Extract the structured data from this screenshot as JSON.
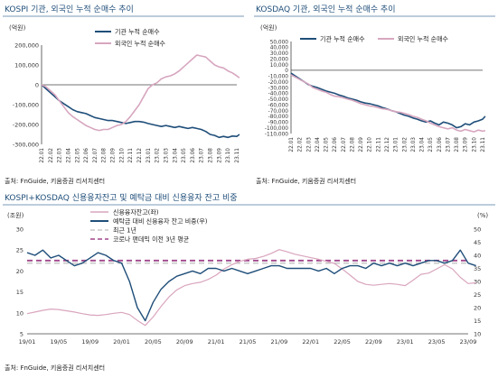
{
  "colors": {
    "title": "#1f4e79",
    "institution": "#1f4e79",
    "foreign": "#d7a6bf",
    "rule": "#7a9bb8",
    "credit_balance": "#d9a5bd",
    "credit_ratio": "#1f4e79",
    "recent_1y": "#c8c8c8",
    "pre_covid_avg": "#a0468c"
  },
  "charts": {
    "kospi": {
      "title": "KOSPI 기관, 외국인 누적 순매수 추이",
      "unit": "(억원)",
      "source": "출처: FnGuide, 키움증권 리서치센터"
    },
    "kosdaq": {
      "title": "KOSDAQ 기관, 외국인 누적 순매수 추이",
      "unit": "(억원)",
      "source": "출처: FnGuide, 키움증권 리서치센터"
    },
    "credit": {
      "title": "KOSPI+KOSDAQ 신용융자잔고 및 예탁금 대비 신용융자 잔고 비중",
      "unit_left": "(조원)",
      "unit_right": "(%)",
      "source": "출처: FnGuide, 키움증권 리서치센터"
    }
  },
  "chart_data": [
    {
      "id": "kospi",
      "type": "line",
      "title": "KOSPI 기관, 외국인 누적 순매수 추이",
      "ylabel": "(억원)",
      "ylim": [
        -300000,
        200000
      ],
      "yticks": [
        200000,
        100000,
        0,
        -100000,
        -200000,
        -300000
      ],
      "ytick_labels": [
        "200,000",
        "100,000",
        "0",
        "-100,000",
        "-200,000",
        "-300,000"
      ],
      "xtick_labels": [
        "22.01",
        "22.02",
        "22.03",
        "22.04",
        "22.05",
        "22.06",
        "22.07",
        "22.08",
        "22.09",
        "22.10",
        "22.11",
        "22.12",
        "23.01",
        "23.02",
        "23.03",
        "23.04",
        "23.05",
        "23.06",
        "23.07",
        "23.08",
        "23.09",
        "23.10",
        "23.11"
      ],
      "legend": "top-center",
      "series": [
        {
          "name": "기관 누적 순매수",
          "color": "#1f4e79",
          "x": [
            0,
            0.5,
            1,
            1.5,
            2,
            2.5,
            3,
            3.5,
            4,
            4.5,
            5,
            5.5,
            6,
            6.5,
            7,
            7.5,
            8,
            8.5,
            9,
            9.5,
            10,
            10.5,
            11,
            11.5,
            12,
            12.5,
            13,
            13.5,
            14,
            14.5,
            15,
            15.5,
            16,
            16.5,
            17,
            17.5,
            18,
            18.5,
            19,
            19.5,
            20,
            20.5,
            21,
            21.5,
            22,
            22.3
          ],
          "values": [
            0,
            -20000,
            -40000,
            -60000,
            -80000,
            -95000,
            -110000,
            -125000,
            -135000,
            -140000,
            -145000,
            -155000,
            -165000,
            -170000,
            -175000,
            -180000,
            -180000,
            -185000,
            -190000,
            -195000,
            -190000,
            -185000,
            -185000,
            -188000,
            -195000,
            -200000,
            -205000,
            -210000,
            -205000,
            -210000,
            -215000,
            -210000,
            -215000,
            -220000,
            -215000,
            -220000,
            -225000,
            -235000,
            -250000,
            -255000,
            -265000,
            -260000,
            -265000,
            -258000,
            -260000,
            -250000
          ]
        },
        {
          "name": "외국인 누적 순매수",
          "color": "#d7a6bf",
          "x": [
            0,
            0.5,
            1,
            1.5,
            2,
            2.5,
            3,
            3.5,
            4,
            4.5,
            5,
            5.5,
            6,
            6.5,
            7,
            7.5,
            8,
            8.5,
            9,
            9.5,
            10,
            10.5,
            11,
            11.5,
            12,
            12.5,
            13,
            13.5,
            14,
            14.5,
            15,
            15.5,
            16,
            16.5,
            17,
            17.5,
            18,
            18.5,
            19,
            19.5,
            20,
            20.5,
            21,
            21.5,
            22,
            22.3
          ],
          "values": [
            0,
            -10000,
            -30000,
            -50000,
            -80000,
            -110000,
            -140000,
            -160000,
            -175000,
            -190000,
            -205000,
            -215000,
            -225000,
            -230000,
            -225000,
            -225000,
            -215000,
            -205000,
            -200000,
            -185000,
            -160000,
            -130000,
            -100000,
            -60000,
            -20000,
            0,
            10000,
            30000,
            40000,
            45000,
            55000,
            70000,
            90000,
            110000,
            130000,
            150000,
            145000,
            140000,
            120000,
            100000,
            90000,
            85000,
            70000,
            60000,
            45000,
            35000
          ]
        }
      ]
    },
    {
      "id": "kosdaq",
      "type": "line",
      "title": "KOSDAQ 기관, 외국인 누적 순매수 추이",
      "ylabel": "(억원)",
      "ylim": [
        -110000,
        50000
      ],
      "yticks": [
        50000,
        40000,
        30000,
        20000,
        10000,
        0,
        -10000,
        -20000,
        -30000,
        -40000,
        -50000,
        -60000,
        -70000,
        -80000,
        -90000,
        -100000,
        -110000
      ],
      "ytick_labels": [
        "50,000",
        "40,000",
        "30,000",
        "20,000",
        "10,000",
        "0",
        "-10,000",
        "-20,000",
        "-30,000",
        "-40,000",
        "-50,000",
        "-60,000",
        "-70,000",
        "-80,000",
        "-90,000",
        "-100,000",
        "-110,000"
      ],
      "xtick_labels": [
        "22.01",
        "22.02",
        "22.03",
        "22.04",
        "22.05",
        "22.06",
        "22.07",
        "22.08",
        "22.09",
        "22.10",
        "22.11",
        "22.12",
        "23.01",
        "23.02",
        "23.03",
        "23.04",
        "23.05",
        "23.06",
        "23.07",
        "23.08",
        "23.09",
        "23.10",
        "23.11"
      ],
      "legend": "top-center",
      "series": [
        {
          "name": "기관 누적 순매수",
          "color": "#1f4e79",
          "x": [
            0,
            0.5,
            1,
            1.5,
            2,
            2.5,
            3,
            3.5,
            4,
            4.5,
            5,
            5.5,
            6,
            6.5,
            7,
            7.5,
            8,
            8.5,
            9,
            9.5,
            10,
            10.5,
            11,
            11.5,
            12,
            12.5,
            13,
            13.5,
            14,
            14.5,
            15,
            15.5,
            16,
            16.5,
            17,
            17.5,
            18,
            18.5,
            19,
            19.5,
            20,
            20.5,
            21,
            21.5,
            22,
            22.3
          ],
          "values": [
            -5000,
            -10000,
            -15000,
            -20000,
            -25000,
            -28000,
            -30000,
            -33000,
            -36000,
            -38000,
            -40000,
            -43000,
            -45000,
            -48000,
            -50000,
            -52000,
            -55000,
            -57000,
            -58000,
            -60000,
            -62000,
            -65000,
            -67000,
            -70000,
            -72000,
            -75000,
            -78000,
            -80000,
            -83000,
            -85000,
            -88000,
            -90000,
            -88000,
            -92000,
            -95000,
            -90000,
            -92000,
            -95000,
            -100000,
            -98000,
            -93000,
            -95000,
            -90000,
            -88000,
            -85000,
            -80000
          ]
        },
        {
          "name": "외국인 누적 순매수",
          "color": "#d7a6bf",
          "x": [
            0,
            0.5,
            1,
            1.5,
            2,
            2.5,
            3,
            3.5,
            4,
            4.5,
            5,
            5.5,
            6,
            6.5,
            7,
            7.5,
            8,
            8.5,
            9,
            9.5,
            10,
            10.5,
            11,
            11.5,
            12,
            12.5,
            13,
            13.5,
            14,
            14.5,
            15,
            15.5,
            16,
            16.5,
            17,
            17.5,
            18,
            18.5,
            19,
            19.5,
            20,
            20.5,
            21,
            21.5,
            22,
            22.3
          ],
          "values": [
            -8000,
            -12000,
            -16000,
            -20000,
            -24000,
            -30000,
            -33000,
            -36000,
            -38000,
            -42000,
            -45000,
            -46000,
            -48000,
            -50000,
            -52000,
            -55000,
            -58000,
            -60000,
            -62000,
            -63000,
            -65000,
            -67000,
            -68000,
            -70000,
            -72000,
            -73000,
            -75000,
            -77000,
            -80000,
            -82000,
            -85000,
            -88000,
            -92000,
            -95000,
            -98000,
            -100000,
            -102000,
            -100000,
            -104000,
            -106000,
            -103000,
            -105000,
            -107000,
            -104000,
            -106000,
            -105000
          ]
        }
      ]
    },
    {
      "id": "credit",
      "type": "line",
      "title": "KOSPI+KOSDAQ 신용융자잔고 및 예탁금 대비 신용융자 잔고 비중",
      "ylabel_left": "(조원)",
      "ylabel_right": "(%)",
      "ylim_left": [
        5,
        30
      ],
      "ylim_right": [
        10,
        50
      ],
      "yticks_left": [
        5,
        10,
        15,
        20,
        25,
        30
      ],
      "yticks_right": [
        10,
        15,
        20,
        25,
        30,
        35,
        40,
        45,
        50
      ],
      "xtick_labels": [
        "19/01",
        "19/05",
        "19/09",
        "20/01",
        "20/05",
        "20/09",
        "21/01",
        "21/05",
        "21/09",
        "22/01",
        "22/05",
        "22/09",
        "23/01",
        "23/05",
        "23/09"
      ],
      "legend": "top-center",
      "series": [
        {
          "name": "신용융자잔고(좌)",
          "axis": "left",
          "color": "#d9a5bd",
          "x": [
            0,
            0.25,
            0.5,
            0.75,
            1,
            1.25,
            1.5,
            1.75,
            2,
            2.25,
            2.5,
            2.75,
            3,
            3.25,
            3.5,
            3.75,
            4,
            4.25,
            4.5,
            4.75,
            5,
            5.25,
            5.5,
            5.75,
            6,
            6.25,
            6.5,
            6.75,
            7,
            7.25,
            7.5,
            7.75,
            8,
            8.25,
            8.5,
            8.75,
            9,
            9.25,
            9.5,
            9.75,
            10,
            10.25,
            10.5,
            10.75,
            11,
            11.25,
            11.5,
            11.75,
            12,
            12.25,
            12.5,
            12.75,
            13,
            13.25,
            13.5,
            13.75,
            14,
            14.25
          ],
          "values": [
            9.8,
            10.2,
            10.6,
            10.9,
            10.8,
            10.5,
            10.2,
            9.8,
            9.5,
            9.4,
            9.6,
            9.9,
            10.1,
            9.6,
            8.2,
            7.0,
            9.0,
            11.5,
            13.8,
            15.5,
            16.5,
            17.0,
            17.3,
            18.0,
            19.0,
            20.5,
            21.5,
            22.3,
            22.8,
            23.0,
            23.5,
            24.2,
            25.1,
            24.6,
            24.0,
            23.6,
            23.2,
            22.8,
            22.3,
            21.8,
            20.5,
            19.0,
            17.5,
            16.8,
            16.6,
            16.8,
            17.0,
            16.8,
            16.5,
            17.8,
            19.2,
            19.5,
            20.5,
            21.5,
            20.5,
            18.5,
            17.0,
            17.2
          ]
        },
        {
          "name": "예탁금 대비 신용융자 잔고 비중(우)",
          "axis": "right",
          "color": "#1f4e79",
          "x": [
            0,
            0.25,
            0.5,
            0.75,
            1,
            1.25,
            1.5,
            1.75,
            2,
            2.25,
            2.5,
            2.75,
            3,
            3.25,
            3.5,
            3.75,
            4,
            4.25,
            4.5,
            4.75,
            5,
            5.25,
            5.5,
            5.75,
            6,
            6.25,
            6.5,
            6.75,
            7,
            7.25,
            7.5,
            7.75,
            8,
            8.25,
            8.5,
            8.75,
            9,
            9.25,
            9.5,
            9.75,
            10,
            10.25,
            10.5,
            10.75,
            11,
            11.25,
            11.5,
            11.75,
            12,
            12.25,
            12.5,
            12.75,
            13,
            13.25,
            13.5,
            13.75,
            14,
            14.25
          ],
          "values": [
            41,
            40,
            42,
            39,
            40,
            38,
            36,
            37,
            39,
            41,
            40,
            38,
            37,
            30,
            20,
            15,
            22,
            27,
            30,
            32,
            33,
            34,
            33,
            35,
            35,
            34,
            35,
            34,
            33,
            34,
            35,
            36,
            36,
            35,
            35,
            35,
            35,
            34,
            35,
            33,
            35,
            36,
            36,
            35,
            37,
            36,
            37,
            36,
            37,
            36,
            37,
            38,
            38,
            37,
            38,
            42,
            37,
            36
          ]
        }
      ],
      "reference_lines": [
        {
          "name": "최근 1년",
          "axis": "right",
          "value": 37.0,
          "color": "#c8c8c8"
        },
        {
          "name": "코로나 팬데믹 이전 3년 평균",
          "axis": "right",
          "value": 38.0,
          "color": "#a0468c"
        }
      ]
    }
  ]
}
